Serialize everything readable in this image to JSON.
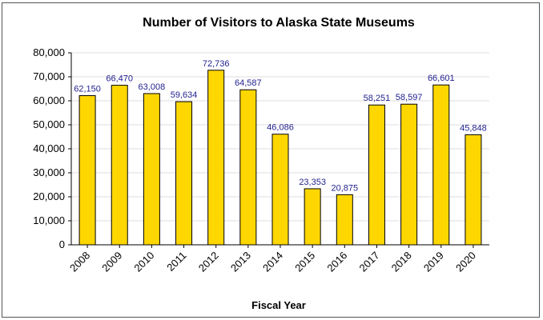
{
  "chart_data": {
    "type": "bar",
    "title": "Number of Visitors to Alaska State Museums",
    "xlabel": "Fiscal Year",
    "ylabel": "",
    "categories": [
      "2008",
      "2009",
      "2010",
      "2011",
      "2012",
      "2013",
      "2014",
      "2015",
      "2016",
      "2017",
      "2018",
      "2019",
      "2020"
    ],
    "values": [
      62150,
      66470,
      63008,
      59634,
      72736,
      64587,
      46086,
      23353,
      20875,
      58251,
      58597,
      66601,
      45848
    ],
    "data_labels": [
      "62,150",
      "66,470",
      "63,008",
      "59,634",
      "72,736",
      "64,587",
      "46,086",
      "23,353",
      "20,875",
      "58,251",
      "58,597",
      "66,601",
      "45,848"
    ],
    "y_ticks": [
      0,
      10000,
      20000,
      30000,
      40000,
      50000,
      60000,
      70000,
      80000
    ],
    "y_tick_labels": [
      "0",
      "10,000",
      "20,000",
      "30,000",
      "40,000",
      "50,000",
      "60,000",
      "70,000",
      "80,000"
    ],
    "ylim": [
      0,
      80000
    ],
    "grid": true,
    "legend": "none",
    "colors": {
      "bar_fill": "#ffd700",
      "bar_stroke": "#000000",
      "data_label": "#1f1f8f",
      "grid": "#dddddd"
    }
  }
}
